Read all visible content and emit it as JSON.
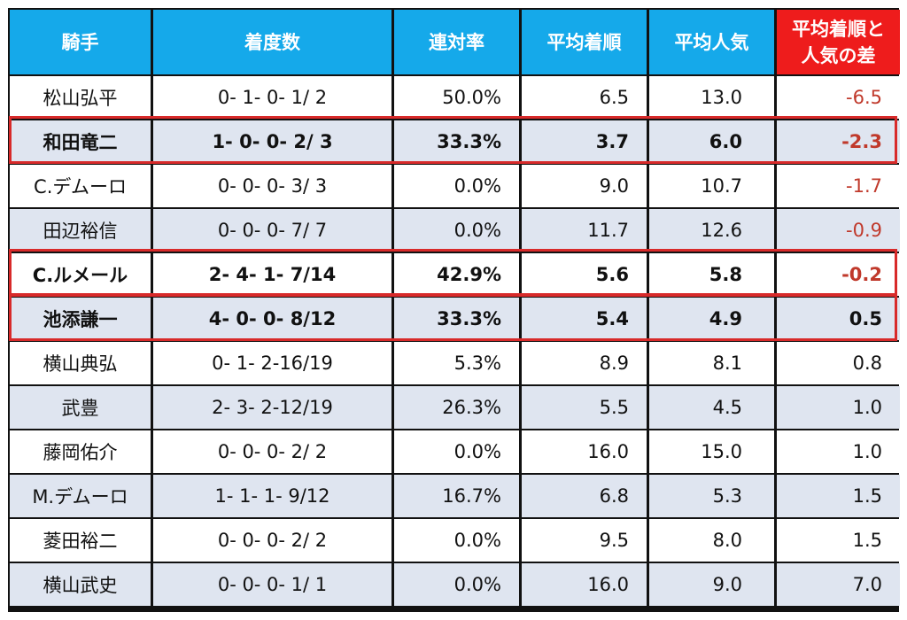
{
  "table": {
    "headers": [
      "騎手",
      "着度数",
      "連対率",
      "平均着順",
      "平均人気",
      "平均着順と\n人気の差"
    ],
    "header_colors": {
      "default": "#15a9ea",
      "last": "#ee1c1c"
    },
    "negative_color": "#c0392b",
    "highlight_color": "#d82a2a",
    "rows": [
      {
        "jockey": "松山弘平",
        "record": "0- 1- 0- 1/ 2",
        "rentai": "50.0%",
        "avg_finish": "6.5",
        "avg_pop": "13.0",
        "diff": "-6.5",
        "bold": false,
        "highlight": false
      },
      {
        "jockey": "和田竜二",
        "record": "1- 0- 0- 2/ 3",
        "rentai": "33.3%",
        "avg_finish": "3.7",
        "avg_pop": "6.0",
        "diff": "-2.3",
        "bold": true,
        "highlight": true
      },
      {
        "jockey": "C.デムーロ",
        "record": "0- 0- 0- 3/ 3",
        "rentai": "0.0%",
        "avg_finish": "9.0",
        "avg_pop": "10.7",
        "diff": "-1.7",
        "bold": false,
        "highlight": false
      },
      {
        "jockey": "田辺裕信",
        "record": "0- 0- 0- 7/ 7",
        "rentai": "0.0%",
        "avg_finish": "11.7",
        "avg_pop": "12.6",
        "diff": "-0.9",
        "bold": false,
        "highlight": false
      },
      {
        "jockey": "C.ルメール",
        "record": "2- 4- 1- 7/14",
        "rentai": "42.9%",
        "avg_finish": "5.6",
        "avg_pop": "5.8",
        "diff": "-0.2",
        "bold": true,
        "highlight": true
      },
      {
        "jockey": "池添謙一",
        "record": "4- 0- 0- 8/12",
        "rentai": "33.3%",
        "avg_finish": "5.4",
        "avg_pop": "4.9",
        "diff": "0.5",
        "bold": true,
        "highlight": true
      },
      {
        "jockey": "横山典弘",
        "record": "0- 1- 2-16/19",
        "rentai": "5.3%",
        "avg_finish": "8.9",
        "avg_pop": "8.1",
        "diff": "0.8",
        "bold": false,
        "highlight": false
      },
      {
        "jockey": "武豊",
        "record": "2- 3- 2-12/19",
        "rentai": "26.3%",
        "avg_finish": "5.5",
        "avg_pop": "4.5",
        "diff": "1.0",
        "bold": false,
        "highlight": false
      },
      {
        "jockey": "藤岡佑介",
        "record": "0- 0- 0- 2/ 2",
        "rentai": "0.0%",
        "avg_finish": "16.0",
        "avg_pop": "15.0",
        "diff": "1.0",
        "bold": false,
        "highlight": false
      },
      {
        "jockey": "M.デムーロ",
        "record": "1- 1- 1- 9/12",
        "rentai": "16.7%",
        "avg_finish": "6.8",
        "avg_pop": "5.3",
        "diff": "1.5",
        "bold": false,
        "highlight": false
      },
      {
        "jockey": "菱田裕二",
        "record": "0- 0- 0- 2/ 2",
        "rentai": "0.0%",
        "avg_finish": "9.5",
        "avg_pop": "8.0",
        "diff": "1.5",
        "bold": false,
        "highlight": false
      },
      {
        "jockey": "横山武史",
        "record": "0- 0- 0- 1/ 1",
        "rentai": "0.0%",
        "avg_finish": "16.0",
        "avg_pop": "9.0",
        "diff": "7.0",
        "bold": false,
        "highlight": false
      }
    ]
  }
}
